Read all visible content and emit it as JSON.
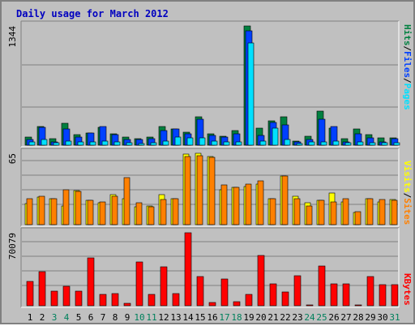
{
  "title": "Daily usage for March 2012",
  "colors": {
    "hits": "#008040",
    "files": "#0040ff",
    "pages": "#00e0ff",
    "visits": "#ffff00",
    "sites": "#ff8000",
    "kbytes": "#ff0000",
    "weekend_label": "#00805c",
    "weekday_label": "#000000",
    "panel_bg": "#c0c0c0",
    "grid": "#808080"
  },
  "legend": {
    "hits": "Hits",
    "files": "Files",
    "pages": "Pages",
    "visits": "Visits",
    "sites": "Sites",
    "kbytes": "KBytes",
    "sep": "/"
  },
  "chart_data": [
    {
      "type": "bar",
      "title": "Daily usage for March 2012",
      "ymax_label": "1344",
      "ylim": [
        0,
        1344
      ],
      "categories": [
        "1",
        "2",
        "3",
        "4",
        "5",
        "6",
        "7",
        "8",
        "9",
        "10",
        "11",
        "12",
        "13",
        "14",
        "15",
        "16",
        "17",
        "18",
        "19",
        "20",
        "21",
        "22",
        "23",
        "24",
        "25",
        "26",
        "27",
        "28",
        "29",
        "30",
        "31"
      ],
      "series": [
        {
          "name": "Hits",
          "values": [
            90,
            210,
            70,
            250,
            120,
            140,
            200,
            130,
            90,
            70,
            90,
            210,
            180,
            150,
            320,
            130,
            100,
            160,
            1344,
            190,
            270,
            320,
            50,
            100,
            380,
            190,
            70,
            180,
            120,
            80,
            80
          ]
        },
        {
          "name": "Files",
          "values": [
            60,
            200,
            40,
            180,
            90,
            140,
            210,
            120,
            60,
            60,
            70,
            160,
            180,
            130,
            290,
            110,
            90,
            130,
            1290,
            110,
            260,
            230,
            40,
            60,
            290,
            210,
            40,
            130,
            80,
            40,
            70
          ]
        },
        {
          "name": "Pages",
          "values": [
            40,
            60,
            25,
            50,
            40,
            40,
            50,
            40,
            30,
            20,
            30,
            50,
            90,
            80,
            80,
            50,
            40,
            40,
            1150,
            50,
            190,
            60,
            20,
            40,
            40,
            50,
            30,
            40,
            30,
            30,
            30
          ]
        }
      ]
    },
    {
      "type": "bar",
      "ymax_label": "65",
      "ylim": [
        0,
        65
      ],
      "categories": [
        "1",
        "2",
        "3",
        "4",
        "5",
        "6",
        "7",
        "8",
        "9",
        "10",
        "11",
        "12",
        "13",
        "14",
        "15",
        "16",
        "17",
        "18",
        "19",
        "20",
        "21",
        "22",
        "23",
        "24",
        "25",
        "26",
        "27",
        "28",
        "29",
        "30",
        "31"
      ],
      "series": [
        {
          "name": "Visits",
          "values": [
            19,
            25,
            24,
            17,
            31,
            22,
            20,
            27,
            24,
            16,
            17,
            27,
            24,
            64,
            65,
            62,
            32,
            34,
            35,
            37,
            24,
            44,
            26,
            20,
            22,
            29,
            21,
            11,
            24,
            21,
            23
          ]
        },
        {
          "name": "Sites",
          "values": [
            24,
            26,
            24,
            32,
            30,
            22,
            21,
            26,
            43,
            20,
            16,
            23,
            24,
            62,
            63,
            61,
            36,
            34,
            37,
            40,
            24,
            44,
            24,
            17,
            22,
            21,
            24,
            12,
            24,
            23,
            22
          ]
        }
      ]
    },
    {
      "type": "bar",
      "ymax_label": "70079",
      "ylim": [
        0,
        70079
      ],
      "categories": [
        "1",
        "2",
        "3",
        "4",
        "5",
        "6",
        "7",
        "8",
        "9",
        "10",
        "11",
        "12",
        "13",
        "14",
        "15",
        "16",
        "17",
        "18",
        "19",
        "20",
        "21",
        "22",
        "23",
        "24",
        "25",
        "26",
        "27",
        "28",
        "29",
        "30",
        "31"
      ],
      "series": [
        {
          "name": "KBytes",
          "values": [
            23000,
            33000,
            14000,
            19000,
            14000,
            46000,
            11000,
            12000,
            2000,
            42000,
            11000,
            37000,
            12000,
            70079,
            28000,
            3000,
            26000,
            4000,
            11000,
            48000,
            21000,
            13000,
            29000,
            1000,
            38000,
            21000,
            21000,
            1000,
            28000,
            20000,
            20000
          ]
        }
      ]
    }
  ],
  "weekend_days": [
    3,
    4,
    10,
    11,
    17,
    18,
    24,
    25,
    31
  ]
}
